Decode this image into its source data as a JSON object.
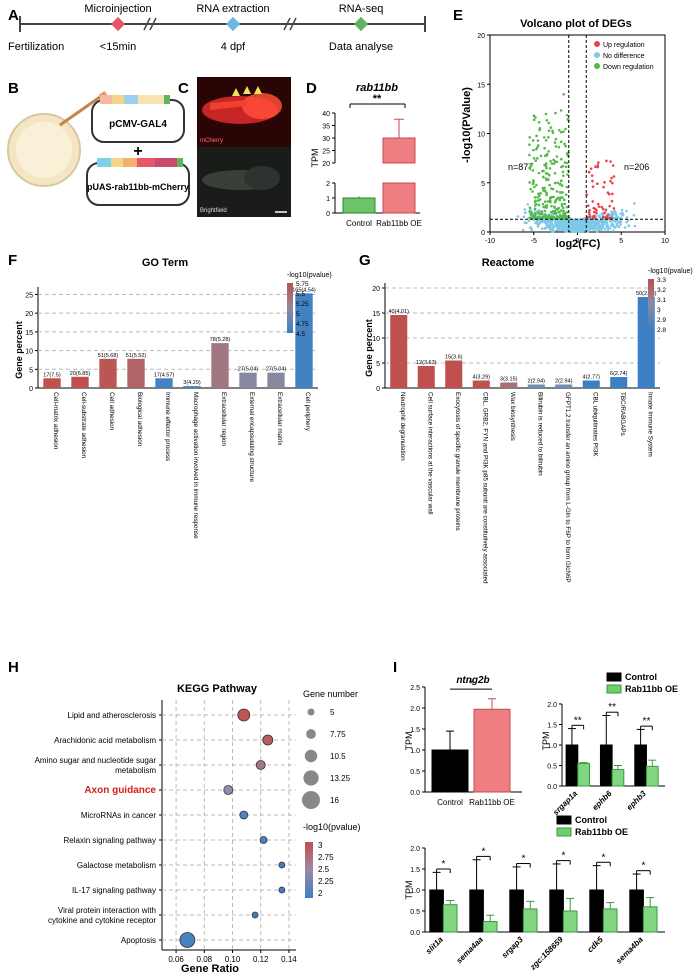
{
  "panels": {
    "A": {
      "letter": "A",
      "timeline": [
        "Fertilization",
        "<15min",
        "4 dpf",
        "Data analyse"
      ],
      "steps": [
        "Microinjection",
        "RNA extraction",
        "RNA-seq"
      ],
      "colors": {
        "microinjection": "#e8566a",
        "rna_extraction": "#6cb8e0",
        "rna_seq": "#5db55d"
      }
    },
    "B": {
      "letter": "B",
      "plasmid1": "pCMV-GAL4",
      "plus": "+",
      "plasmid2": "pUAS-rab11bb-mCherry"
    },
    "C": {
      "letter": "C",
      "top_label": "mCherry",
      "bottom_label": "Brightfield"
    },
    "D": {
      "letter": "D",
      "title": "rab11bb",
      "ylabel": "TPM",
      "significance": "**"
    },
    "E": {
      "letter": "E",
      "title": "Volcano plot of DEGs",
      "n_left": "n=877",
      "n_right": "n=206"
    },
    "F": {
      "letter": "F",
      "title": "GO Term"
    },
    "G": {
      "letter": "G",
      "title": "Reactome"
    },
    "H": {
      "letter": "H",
      "title": "KEGG Pathway",
      "size_legend_title": "Gene number",
      "color_legend_title": "-log10(pvalue)"
    },
    "I": {
      "letter": "I",
      "significance": "*",
      "significance2": "**"
    }
  },
  "chart_data": [
    {
      "id": "D",
      "type": "bar",
      "title": "rab11bb",
      "ylabel": "TPM",
      "categories": [
        "Control",
        "Rab11bb OE"
      ],
      "values": [
        1.0,
        30.0
      ],
      "errors": [
        0.1,
        7.5
      ],
      "yticks_lower": [
        "0",
        "1",
        "2"
      ],
      "yticks_upper": [
        "20",
        "25",
        "30",
        "35",
        "40"
      ],
      "colors": [
        "#6cc36c",
        "#ef7e82"
      ]
    },
    {
      "id": "E",
      "type": "scatter",
      "title": "Volcano plot of DEGs",
      "xlabel": "log2(FC)",
      "ylabel": "-log10(PValue)",
      "xlim": [
        -10,
        10
      ],
      "ylim": [
        0,
        20
      ],
      "xticks": [
        "-10",
        "-5",
        "0",
        "5",
        "10"
      ],
      "yticks": [
        "0",
        "5",
        "10",
        "15",
        "20"
      ],
      "legend": [
        "Up regulation",
        "No difference",
        "Down regulation"
      ],
      "colors": [
        "#e8434b",
        "#7ec8e8",
        "#55b84a"
      ],
      "counts": {
        "up": 206,
        "down": 877
      }
    },
    {
      "id": "F",
      "type": "bar",
      "title": "GO Term",
      "ylabel": "Gene percent",
      "ylim": [
        0,
        27
      ],
      "yticks": [
        "0",
        "5",
        "10",
        "15",
        "20",
        "25"
      ],
      "categories": [
        "Cell-matrix adhesion",
        "Cell-substrate adhesion",
        "Cell adhesion",
        "Biological adhesion",
        "Immune effector process",
        "Macrophage activation involved in immune response",
        "Extracellular region",
        "External encapsulating structure",
        "Extracellular matrix",
        "Cell periphery"
      ],
      "values": [
        2.6,
        3.0,
        7.8,
        7.8,
        2.6,
        0.5,
        12.0,
        4.1,
        4.1,
        25.3
      ],
      "data_labels": [
        "17(7.5)",
        "20(6.85)",
        "51(5.68)",
        "51(5.52)",
        "17(4.57)",
        "3(4.29)",
        "78(5.28)",
        "27(5.04)",
        "27(5.04)",
        "165(4.54)"
      ],
      "pvalues": [
        7.5,
        6.85,
        5.68,
        5.52,
        4.57,
        4.29,
        5.28,
        5.04,
        5.04,
        4.54
      ],
      "legend_title": "-log10(pvalue)",
      "legend_ticks": [
        "5.75",
        "5.5",
        "5.25",
        "5",
        "4.75",
        "4.5"
      ]
    },
    {
      "id": "G",
      "type": "bar",
      "title": "Reactome",
      "ylabel": "Gene percent",
      "ylim": [
        0,
        21
      ],
      "yticks": [
        "0",
        "5",
        "10",
        "15",
        "20"
      ],
      "categories": [
        "Neutrophil degranulation",
        "Cell surface interactions at the vascular wall",
        "Exocytosis of specific granule membrane proteins",
        "CBL, GRB2, FYN and PI3K p85 subunit are constitutively associated",
        "Wax biosynthesis",
        "Bilirubin is reduced to bilirubin",
        "GFPT1,2 transfer an amino group from L-Gln to F6P to form GlcN6P",
        "CBL ubiquitinates PI3K",
        "TBC/RABGAPs",
        "Innate Immune System"
      ],
      "values": [
        14.6,
        4.4,
        5.5,
        1.5,
        1.1,
        0.7,
        0.7,
        1.5,
        2.2,
        18.2
      ],
      "data_labels": [
        "40(4.01)",
        "12(3.63)",
        "15(3.6)",
        "4(3.29)",
        "3(3.15)",
        "2(2.94)",
        "2(2.94)",
        "4(2.77)",
        "6(2.74)",
        "50(2.73)"
      ],
      "pvalues": [
        4.01,
        3.63,
        3.6,
        3.29,
        3.15,
        2.94,
        2.94,
        2.77,
        2.74,
        2.73
      ],
      "legend_title": "-log10(pvalue)",
      "legend_ticks": [
        "3.3",
        "3.2",
        "3.1",
        "3",
        "2.9",
        "2.8"
      ]
    },
    {
      "id": "H",
      "type": "scatter",
      "title": "KEGG Pathway",
      "xlabel": "Gene Ratio",
      "xlim": [
        0.05,
        0.145
      ],
      "xticks": [
        "0.06",
        "0.08",
        "0.10",
        "0.12",
        "0.14"
      ],
      "categories": [
        "Lipid and atherosclerosis",
        "Arachidonic acid metabolism",
        "Amino sugar and nucleotide sugar metabolism",
        "Axon guidance",
        "MicroRNAs in cancer",
        "Relaxin signaling pathway",
        "Galactose metabolism",
        "IL-17 signaling pathway",
        "Viral protein interaction with cytokine and cytokine receptor",
        "Apoptosis"
      ],
      "gene_ratio": [
        0.108,
        0.125,
        0.12,
        0.097,
        0.108,
        0.122,
        0.135,
        0.135,
        0.116,
        0.068
      ],
      "gene_number": [
        10,
        8,
        7,
        7,
        6,
        5,
        4,
        4,
        4,
        13
      ],
      "pvalue": [
        2.95,
        2.9,
        2.7,
        2.4,
        2.1,
        2.05,
        2.0,
        2.0,
        2.0,
        2.05
      ],
      "size_legend": [
        "5",
        "7.75",
        "10.5",
        "13.25",
        "16"
      ],
      "color_legend": [
        "3",
        "2.75",
        "2.5",
        "2.25",
        "2"
      ],
      "highlight": "Axon guidance"
    },
    {
      "id": "I1",
      "type": "bar",
      "title": "ntng2b",
      "ylabel": "TPM",
      "ylim": [
        0,
        2.5
      ],
      "yticks": [
        "0.0",
        "0.5",
        "1.0",
        "1.5",
        "2.0",
        "2.5"
      ],
      "categories": [
        "Control",
        "Rab11bb OE"
      ],
      "values": [
        1.0,
        1.97
      ],
      "errors": [
        0.45,
        0.25
      ],
      "colors": [
        "#000000",
        "#ef7e82"
      ]
    },
    {
      "id": "I2",
      "type": "bar",
      "ylabel": "TPM",
      "ylim": [
        0,
        2.0
      ],
      "yticks": [
        "0.0",
        "0.5",
        "1.0",
        "1.5",
        "2.0"
      ],
      "categories": [
        "srgap1a",
        "ephb6",
        "ephb3"
      ],
      "series": [
        {
          "name": "Control",
          "values": [
            1.0,
            1.0,
            1.0
          ],
          "errors": [
            0.4,
            0.72,
            0.38
          ]
        },
        {
          "name": "Rab11bb OE",
          "values": [
            0.55,
            0.4,
            0.48
          ],
          "errors": [
            0.02,
            0.1,
            0.15
          ]
        }
      ],
      "colors": [
        "#000000",
        "#6ccf6c"
      ]
    },
    {
      "id": "I3",
      "type": "bar",
      "ylabel": "TPM",
      "ylim": [
        0,
        2.0
      ],
      "yticks": [
        "0.0",
        "0.5",
        "1.0",
        "1.5",
        "2.0"
      ],
      "categories": [
        "slit1a",
        "sema4aa",
        "srgap3",
        "zgc:158659",
        "cdk5",
        "sema4ba"
      ],
      "series": [
        {
          "name": "Control",
          "values": [
            1.0,
            1.0,
            1.0,
            1.0,
            1.0,
            1.0
          ],
          "errors": [
            0.42,
            0.72,
            0.55,
            0.62,
            0.58,
            0.38
          ]
        },
        {
          "name": "Rab11bb OE",
          "values": [
            0.65,
            0.25,
            0.55,
            0.5,
            0.55,
            0.6
          ],
          "errors": [
            0.1,
            0.15,
            0.18,
            0.3,
            0.15,
            0.22
          ]
        }
      ],
      "colors": [
        "#000000",
        "#6ccf6c"
      ]
    }
  ]
}
